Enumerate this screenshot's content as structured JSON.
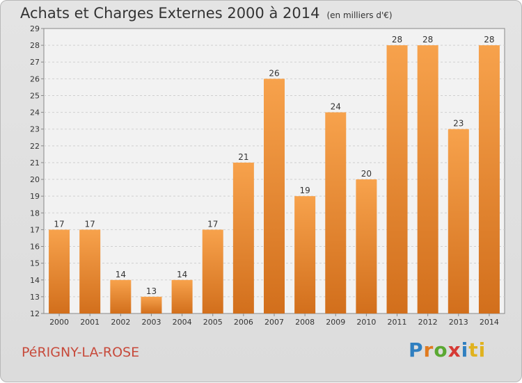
{
  "header": {
    "title": "Achats et Charges Externes 2000 à 2014",
    "subtitle": "(en milliers d'€)"
  },
  "footer": {
    "commune": "PéRIGNY-LA-ROSE",
    "brand": [
      "P",
      "r",
      "o",
      "x",
      "i",
      "ti"
    ]
  },
  "chart_data": {
    "type": "bar",
    "title": "Achats et Charges Externes 2000 à 2014",
    "subtitle": "(en milliers d'€)",
    "categories": [
      "2000",
      "2001",
      "2002",
      "2003",
      "2004",
      "2005",
      "2006",
      "2007",
      "2008",
      "2009",
      "2010",
      "2011",
      "2012",
      "2013",
      "2014"
    ],
    "values": [
      17,
      17,
      14,
      13,
      14,
      17,
      21,
      26,
      19,
      24,
      20,
      28,
      28,
      23,
      28
    ],
    "ylim": [
      12,
      29
    ],
    "yticks": [
      12,
      13,
      14,
      15,
      16,
      17,
      18,
      19,
      20,
      21,
      22,
      23,
      24,
      25,
      26,
      27,
      28,
      29
    ],
    "grid": true,
    "bar_color": "#f0923a",
    "bar_color_dark": "#cc6a1a"
  }
}
